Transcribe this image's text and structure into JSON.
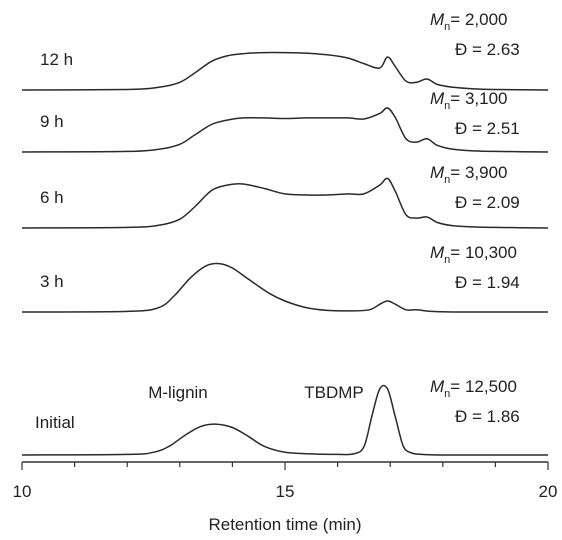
{
  "chart_data": {
    "type": "line",
    "xlabel": "Retention time (min)",
    "ylabel": "",
    "xlim": [
      10,
      20
    ],
    "xticks": [
      10,
      15,
      20
    ],
    "tick_labels": [
      "10",
      "15",
      "20"
    ],
    "grid": false,
    "legend": "none",
    "series": [
      {
        "name": "12 h",
        "mn_label": "M",
        "mn_sub": "n",
        "mn_value": "= 2,000",
        "dispersity": "Đ = 2.63",
        "x": [
          10.0,
          12.0,
          12.6,
          13.0,
          13.3,
          13.6,
          13.9,
          14.2,
          14.6,
          15.0,
          15.4,
          15.8,
          16.2,
          16.5,
          16.8,
          16.95,
          17.1,
          17.3,
          17.5,
          17.7,
          17.9,
          18.2,
          18.6,
          19.0,
          20.0
        ],
        "y": [
          0.0,
          0.01,
          0.05,
          0.14,
          0.32,
          0.52,
          0.62,
          0.66,
          0.68,
          0.68,
          0.67,
          0.64,
          0.58,
          0.48,
          0.4,
          0.6,
          0.42,
          0.16,
          0.14,
          0.2,
          0.1,
          0.05,
          0.02,
          0.01,
          0.0
        ]
      },
      {
        "name": "9 h",
        "mn_label": "M",
        "mn_sub": "n",
        "mn_value": "= 3,100",
        "dispersity": "Đ = 2.51",
        "x": [
          10.0,
          12.0,
          12.6,
          13.0,
          13.3,
          13.6,
          13.9,
          14.2,
          14.6,
          15.0,
          15.4,
          15.8,
          16.2,
          16.5,
          16.8,
          16.95,
          17.1,
          17.3,
          17.5,
          17.7,
          17.9,
          18.2,
          18.6,
          19.0,
          20.0
        ],
        "y": [
          0.0,
          0.01,
          0.05,
          0.14,
          0.32,
          0.5,
          0.58,
          0.62,
          0.62,
          0.61,
          0.62,
          0.62,
          0.62,
          0.6,
          0.7,
          0.8,
          0.62,
          0.24,
          0.18,
          0.24,
          0.12,
          0.05,
          0.02,
          0.01,
          0.0
        ]
      },
      {
        "name": "6 h",
        "mn_label": "M",
        "mn_sub": "n",
        "mn_value": "= 3,900",
        "dispersity": "Đ = 2.09",
        "x": [
          10.0,
          12.0,
          12.6,
          13.0,
          13.3,
          13.6,
          13.9,
          14.2,
          14.6,
          15.0,
          15.4,
          15.8,
          16.2,
          16.5,
          16.8,
          16.95,
          17.1,
          17.3,
          17.5,
          17.7,
          17.9,
          18.2,
          18.6,
          19.0,
          20.0
        ],
        "y": [
          0.0,
          0.01,
          0.05,
          0.16,
          0.4,
          0.68,
          0.78,
          0.8,
          0.72,
          0.62,
          0.6,
          0.6,
          0.62,
          0.62,
          0.78,
          0.9,
          0.66,
          0.24,
          0.18,
          0.2,
          0.1,
          0.04,
          0.02,
          0.01,
          0.0
        ]
      },
      {
        "name": "3 h",
        "mn_label": "M",
        "mn_sub": "n",
        "mn_value": "= 10,300",
        "dispersity": "Đ = 1.94",
        "x": [
          10.0,
          12.0,
          12.6,
          12.9,
          13.2,
          13.5,
          13.75,
          14.0,
          14.3,
          14.7,
          15.0,
          15.4,
          15.8,
          16.2,
          16.6,
          16.8,
          16.95,
          17.1,
          17.3,
          17.5,
          17.8,
          18.2,
          19.0,
          20.0
        ],
        "y": [
          0.0,
          0.01,
          0.08,
          0.3,
          0.62,
          0.84,
          0.88,
          0.8,
          0.6,
          0.34,
          0.2,
          0.08,
          0.03,
          0.02,
          0.04,
          0.14,
          0.2,
          0.14,
          0.04,
          0.04,
          0.01,
          0.0,
          0.0,
          0.0
        ]
      },
      {
        "name": "Initial",
        "mn_label": "M",
        "mn_sub": "n",
        "mn_value": "= 12,500",
        "dispersity": "Đ = 1.86",
        "x": [
          10.0,
          12.0,
          12.5,
          12.8,
          13.1,
          13.4,
          13.7,
          14.0,
          14.3,
          14.6,
          15.0,
          15.5,
          16.0,
          16.3,
          16.5,
          16.65,
          16.8,
          16.95,
          17.1,
          17.25,
          17.4,
          17.6,
          18.0,
          19.0,
          20.0
        ],
        "y": [
          0.0,
          0.01,
          0.05,
          0.16,
          0.36,
          0.52,
          0.56,
          0.5,
          0.34,
          0.16,
          0.05,
          0.02,
          0.01,
          0.02,
          0.15,
          0.7,
          1.2,
          1.2,
          0.68,
          0.16,
          0.04,
          0.01,
          0.0,
          0.0,
          0.0
        ]
      }
    ],
    "annotations": [
      "M-lignin",
      "TBDMP"
    ]
  }
}
